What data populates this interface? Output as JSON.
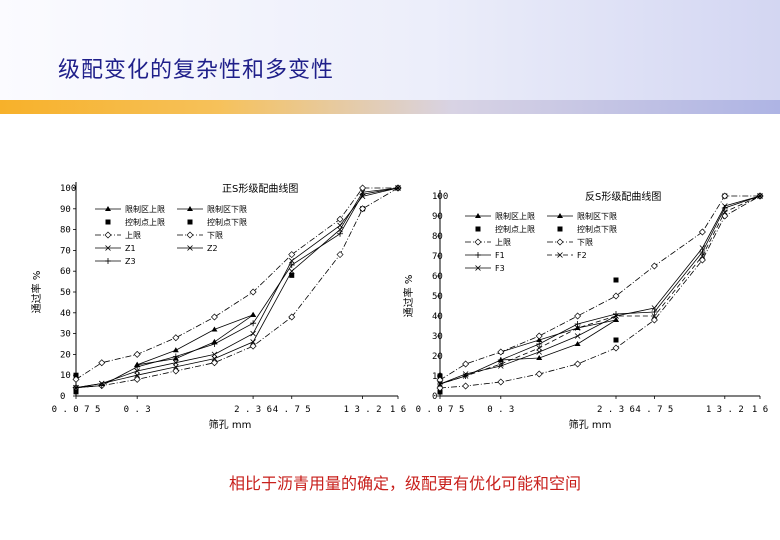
{
  "page_title": "级配变化的复杂性和多变性",
  "caption": "相比于沥青用量的确定，级配更有优化可能和空间",
  "colors": {
    "title": "#1f1f8a",
    "caption": "#c8201c",
    "header_accent": "#f7b12a"
  },
  "chart_data": [
    {
      "type": "line",
      "title": "正S形级配曲线图",
      "xlabel": "筛孔 mm",
      "ylabel": "通过率 %",
      "x_ticks": [
        "0.075",
        "0.3",
        "2.36",
        "4.75",
        "13.2",
        "16"
      ],
      "y_ticks": [
        0,
        10,
        20,
        30,
        40,
        50,
        60,
        70,
        80,
        90,
        100
      ],
      "ylim": [
        0,
        100
      ],
      "legend": [
        "限制区上限",
        "限制区下限",
        "控制点上限",
        "控制点下限",
        "上限",
        "下限",
        "Z1",
        "Z2",
        "Z3"
      ],
      "series": [
        {
          "name": "限制区上限",
          "style": "solid",
          "marker": "tri",
          "points": [
            [
              0.3,
              15
            ],
            [
              0.6,
              22
            ],
            [
              1.18,
              32
            ],
            [
              2.36,
              39
            ]
          ]
        },
        {
          "name": "限制区下限",
          "style": "solid",
          "marker": "tri",
          "points": [
            [
              0.3,
              15
            ],
            [
              0.6,
              18
            ],
            [
              1.18,
              26
            ],
            [
              2.36,
              39
            ]
          ]
        },
        {
          "name": "控制点上限",
          "style": "none",
          "marker": "sq",
          "points": [
            [
              0.075,
              10
            ],
            [
              4.75,
              58
            ],
            [
              16,
              100
            ]
          ]
        },
        {
          "name": "控制点下限",
          "style": "none",
          "marker": "sq",
          "points": [
            [
              0.075,
              2
            ],
            [
              13.2,
              90
            ],
            [
              16,
              100
            ]
          ]
        },
        {
          "name": "上限",
          "style": "dashdot",
          "marker": "diamond",
          "points": [
            [
              0.075,
              8
            ],
            [
              0.15,
              16
            ],
            [
              0.3,
              20
            ],
            [
              0.6,
              28
            ],
            [
              1.18,
              38
            ],
            [
              2.36,
              50
            ],
            [
              4.75,
              68
            ],
            [
              9.5,
              85
            ],
            [
              13.2,
              100
            ],
            [
              16,
              100
            ]
          ]
        },
        {
          "name": "下限",
          "style": "dashdot",
          "marker": "diamond",
          "points": [
            [
              0.075,
              4
            ],
            [
              0.15,
              5
            ],
            [
              0.3,
              8
            ],
            [
              0.6,
              12
            ],
            [
              1.18,
              16
            ],
            [
              2.36,
              24
            ],
            [
              4.75,
              38
            ],
            [
              9.5,
              68
            ],
            [
              13.2,
              90
            ],
            [
              16,
              100
            ]
          ]
        },
        {
          "name": "Z1",
          "style": "solid",
          "marker": "x",
          "points": [
            [
              0.075,
              4
            ],
            [
              0.15,
              6
            ],
            [
              0.3,
              12
            ],
            [
              0.6,
              16
            ],
            [
              1.18,
              20
            ],
            [
              2.36,
              30
            ],
            [
              4.75,
              65
            ],
            [
              9.5,
              82
            ],
            [
              13.2,
              96
            ],
            [
              16,
              100
            ]
          ]
        },
        {
          "name": "Z2",
          "style": "solid",
          "marker": "x",
          "points": [
            [
              0.075,
              4
            ],
            [
              0.15,
              6
            ],
            [
              0.3,
              10
            ],
            [
              0.6,
              14
            ],
            [
              1.18,
              18
            ],
            [
              2.36,
              26
            ],
            [
              4.75,
              60
            ],
            [
              9.5,
              80
            ],
            [
              13.2,
              98
            ],
            [
              16,
              100
            ]
          ]
        },
        {
          "name": "Z3",
          "style": "solid",
          "marker": "plus",
          "points": [
            [
              0.075,
              4
            ],
            [
              0.15,
              5
            ],
            [
              0.3,
              14
            ],
            [
              0.6,
              19
            ],
            [
              1.18,
              25
            ],
            [
              2.36,
              35
            ],
            [
              4.75,
              63
            ],
            [
              9.5,
              78
            ],
            [
              13.2,
              97
            ],
            [
              16,
              100
            ]
          ]
        }
      ]
    },
    {
      "type": "line",
      "title": "反S形级配曲线图",
      "xlabel": "筛孔 mm",
      "ylabel": "通过率 %",
      "x_ticks": [
        "0.075",
        "0.3",
        "2.36",
        "4.75",
        "13.2",
        "16"
      ],
      "y_ticks": [
        0,
        10,
        20,
        30,
        40,
        50,
        60,
        70,
        80,
        90,
        100
      ],
      "ylim": [
        0,
        100
      ],
      "legend": [
        "限制区上限",
        "限制区下限",
        "控制点上限",
        "控制点下限",
        "上限",
        "下限",
        "F1",
        "F2",
        "F3"
      ],
      "series": [
        {
          "name": "限制区上限",
          "style": "solid",
          "marker": "tri",
          "points": [
            [
              0.3,
              22
            ],
            [
              0.6,
              28
            ],
            [
              1.18,
              34
            ],
            [
              2.36,
              38
            ]
          ]
        },
        {
          "name": "限制区下限",
          "style": "solid",
          "marker": "tri",
          "points": [
            [
              0.3,
              18
            ],
            [
              0.6,
              19
            ],
            [
              1.18,
              26
            ],
            [
              2.36,
              38
            ]
          ]
        },
        {
          "name": "控制点上限",
          "style": "none",
          "marker": "sq",
          "points": [
            [
              0.075,
              10
            ],
            [
              2.36,
              58
            ],
            [
              13.2,
              100
            ]
          ]
        },
        {
          "name": "控制点下限",
          "style": "none",
          "marker": "sq",
          "points": [
            [
              0.075,
              2
            ],
            [
              2.36,
              28
            ],
            [
              16,
              100
            ]
          ]
        },
        {
          "name": "上限",
          "style": "dashdot",
          "marker": "diamond",
          "points": [
            [
              0.075,
              8
            ],
            [
              0.15,
              16
            ],
            [
              0.3,
              22
            ],
            [
              0.6,
              30
            ],
            [
              1.18,
              40
            ],
            [
              2.36,
              50
            ],
            [
              4.75,
              65
            ],
            [
              9.5,
              82
            ],
            [
              13.2,
              100
            ],
            [
              16,
              100
            ]
          ]
        },
        {
          "name": "下限",
          "style": "dashdot",
          "marker": "diamond",
          "points": [
            [
              0.075,
              4
            ],
            [
              0.15,
              5
            ],
            [
              0.3,
              7
            ],
            [
              0.6,
              11
            ],
            [
              1.18,
              16
            ],
            [
              2.36,
              24
            ],
            [
              4.75,
              38
            ],
            [
              9.5,
              68
            ],
            [
              13.2,
              90
            ],
            [
              16,
              100
            ]
          ]
        },
        {
          "name": "F1",
          "style": "solid",
          "marker": "plus",
          "points": [
            [
              0.075,
              6
            ],
            [
              0.15,
              10
            ],
            [
              0.3,
              18
            ],
            [
              0.6,
              26
            ],
            [
              1.18,
              36
            ],
            [
              2.36,
              41
            ],
            [
              4.75,
              42
            ],
            [
              9.5,
              72
            ],
            [
              13.2,
              94
            ],
            [
              16,
              100
            ]
          ]
        },
        {
          "name": "F2",
          "style": "dash",
          "marker": "x",
          "points": [
            [
              0.075,
              6
            ],
            [
              0.15,
              10
            ],
            [
              0.3,
              16
            ],
            [
              0.6,
              24
            ],
            [
              1.18,
              34
            ],
            [
              2.36,
              40
            ],
            [
              4.75,
              40
            ],
            [
              9.5,
              70
            ],
            [
              13.2,
              92
            ],
            [
              16,
              100
            ]
          ]
        },
        {
          "name": "F3",
          "style": "solid",
          "marker": "x",
          "points": [
            [
              0.075,
              6
            ],
            [
              0.15,
              11
            ],
            [
              0.3,
              15
            ],
            [
              0.6,
              22
            ],
            [
              1.18,
              30
            ],
            [
              2.36,
              40
            ],
            [
              4.75,
              44
            ],
            [
              9.5,
              74
            ],
            [
              13.2,
              95
            ],
            [
              16,
              100
            ]
          ]
        }
      ]
    }
  ]
}
